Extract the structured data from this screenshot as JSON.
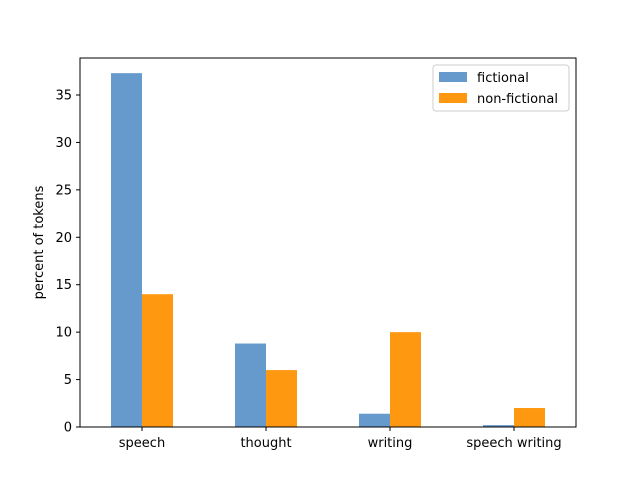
{
  "chart_data": {
    "type": "bar",
    "title": "",
    "xlabel": "",
    "ylabel": "percent of tokens",
    "categories": [
      "speech",
      "thought",
      "writing",
      "speech writing"
    ],
    "series": [
      {
        "name": "fictional",
        "values": [
          37.3,
          8.8,
          1.4,
          0.2
        ],
        "color": "#6699cc"
      },
      {
        "name": "non-fictional",
        "values": [
          14.0,
          6.0,
          10.0,
          2.0
        ],
        "color": "#ff9811"
      }
    ],
    "ylim": [
      0,
      38.9
    ],
    "yticks": [
      0,
      5,
      10,
      15,
      20,
      25,
      30,
      35
    ],
    "grid": false,
    "legend_position": "top-right"
  }
}
